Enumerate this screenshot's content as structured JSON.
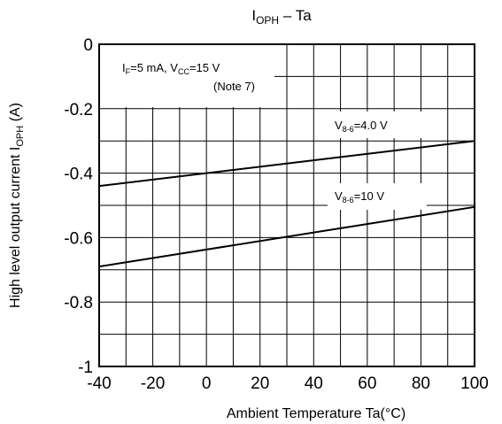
{
  "chart_data": {
    "type": "line",
    "title": "IOPH – Ta",
    "title_parts": {
      "main": "I",
      "sub": "OPH",
      "rest": " – Ta"
    },
    "xlabel": "Ambient Temperature Ta(°C)",
    "ylabel": "High level output current IOPH (A)",
    "ylabel_parts": {
      "main": "High level output current  I",
      "sub": "OPH",
      "rest": "  (A)"
    },
    "xlim": [
      -40,
      100
    ],
    "ylim": [
      -1,
      0
    ],
    "x_ticks": [
      -40,
      -20,
      0,
      20,
      40,
      60,
      80,
      100
    ],
    "x_tick_labels": [
      "-40",
      "-20",
      "0",
      "20",
      "40",
      "60",
      "80",
      "100"
    ],
    "y_ticks": [
      0,
      -0.2,
      -0.4,
      -0.6,
      -0.8,
      -1
    ],
    "y_tick_labels": [
      "0",
      "-0.2",
      "-0.4",
      "-0.6",
      "-0.8",
      "-1"
    ],
    "grid": true,
    "series": [
      {
        "name": "V8-6=4.0 V",
        "label_parts": {
          "main": "V",
          "sub": "8-6",
          "rest": "=4.0 V"
        },
        "x": [
          -40,
          100
        ],
        "y": [
          -0.44,
          -0.3
        ]
      },
      {
        "name": "V8-6=10 V",
        "label_parts": {
          "main": "V",
          "sub": "8-6",
          "rest": "=10 V"
        },
        "x": [
          -40,
          100
        ],
        "y": [
          -0.69,
          -0.505
        ]
      }
    ],
    "annotations": [
      {
        "line1": {
          "p1": "I",
          "s1": "F",
          "p2": "=5 mA, V",
          "s2": "CC",
          "p3": "=15 V"
        },
        "line2": "(Note 7)"
      }
    ]
  }
}
